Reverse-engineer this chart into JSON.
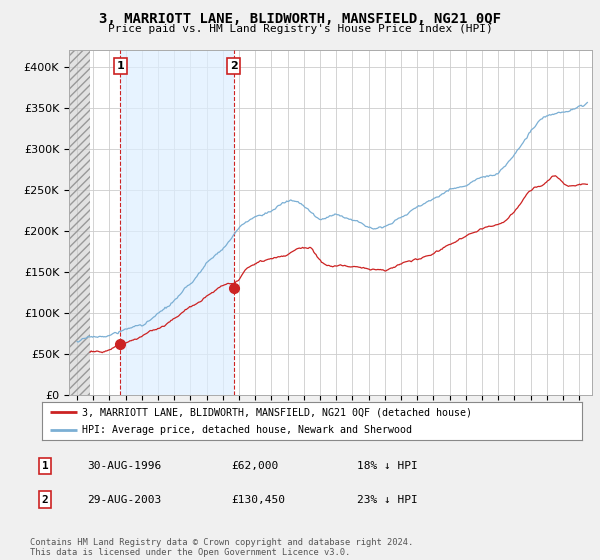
{
  "title": "3, MARRIOTT LANE, BLIDWORTH, MANSFIELD, NG21 0QF",
  "subtitle": "Price paid vs. HM Land Registry's House Price Index (HPI)",
  "hpi_color": "#7bafd4",
  "price_color": "#cc2222",
  "background_color": "#f0f0f0",
  "plot_bg": "#ffffff",
  "ylim": [
    0,
    420000
  ],
  "yticks": [
    0,
    50000,
    100000,
    150000,
    200000,
    250000,
    300000,
    350000,
    400000
  ],
  "xlim_start": 1993.5,
  "xlim_end": 2025.8,
  "xticks": [
    1994,
    1995,
    1996,
    1997,
    1998,
    1999,
    2000,
    2001,
    2002,
    2003,
    2004,
    2005,
    2006,
    2007,
    2008,
    2009,
    2010,
    2011,
    2012,
    2013,
    2014,
    2015,
    2016,
    2017,
    2018,
    2019,
    2020,
    2021,
    2022,
    2023,
    2024,
    2025
  ],
  "sale1_x": 1996.67,
  "sale1_y": 62000,
  "sale1_label": "1",
  "sale2_x": 2003.67,
  "sale2_y": 130450,
  "sale2_label": "2",
  "hatch_end": 1994.8,
  "shade_start": 1996.67,
  "shade_end": 2003.67,
  "legend_line1": "3, MARRIOTT LANE, BLIDWORTH, MANSFIELD, NG21 0QF (detached house)",
  "legend_line2": "HPI: Average price, detached house, Newark and Sherwood",
  "table_row1": [
    "1",
    "30-AUG-1996",
    "£62,000",
    "18% ↓ HPI"
  ],
  "table_row2": [
    "2",
    "29-AUG-2003",
    "£130,450",
    "23% ↓ HPI"
  ],
  "footnote": "Contains HM Land Registry data © Crown copyright and database right 2024.\nThis data is licensed under the Open Government Licence v3.0."
}
